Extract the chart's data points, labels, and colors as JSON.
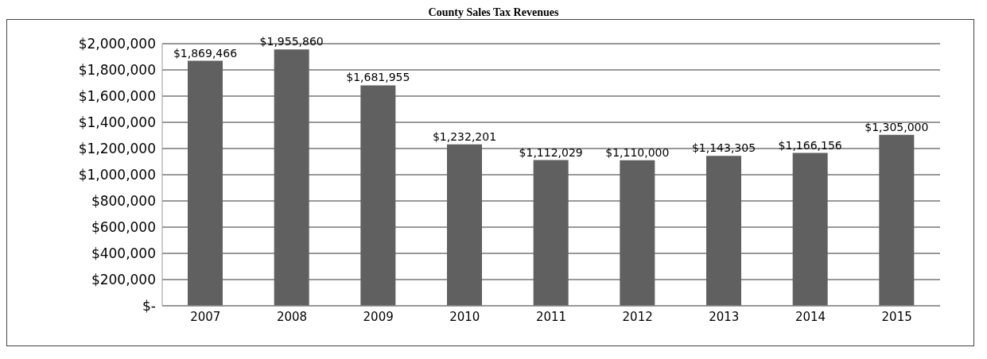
{
  "chart_data": {
    "type": "bar",
    "title": "County Sales Tax Revenues",
    "categories": [
      "2007",
      "2008",
      "2009",
      "2010",
      "2011",
      "2012",
      "2013",
      "2014",
      "2015"
    ],
    "values": [
      1869466,
      1955860,
      1681955,
      1232201,
      1112029,
      1110000,
      1143305,
      1166156,
      1305000
    ],
    "color": "#606060",
    "ylim": [
      0,
      2000000
    ],
    "yticks": [
      {
        "value": 0,
        "label": "$-"
      },
      {
        "value": 200000,
        "label": "$200,000"
      },
      {
        "value": 400000,
        "label": "$400,000"
      },
      {
        "value": 600000,
        "label": "$600,000"
      },
      {
        "value": 800000,
        "label": "$800,000"
      },
      {
        "value": 1000000,
        "label": "$1,000,000"
      },
      {
        "value": 1200000,
        "label": "$1,200,000"
      },
      {
        "value": 1400000,
        "label": "$1,400,000"
      },
      {
        "value": 1600000,
        "label": "$1,600,000"
      },
      {
        "value": 1800000,
        "label": "$1,800,000"
      },
      {
        "value": 2000000,
        "label": "$2,000,000"
      }
    ],
    "value_labels": [
      "$1,869,466",
      "$1,955,860",
      "$1,681,955",
      "$1,232,201",
      "$1,112,029",
      "$1,110,000",
      "$1,143,305",
      "$1,166,156",
      "$1,305,000"
    ],
    "grid": "y"
  }
}
